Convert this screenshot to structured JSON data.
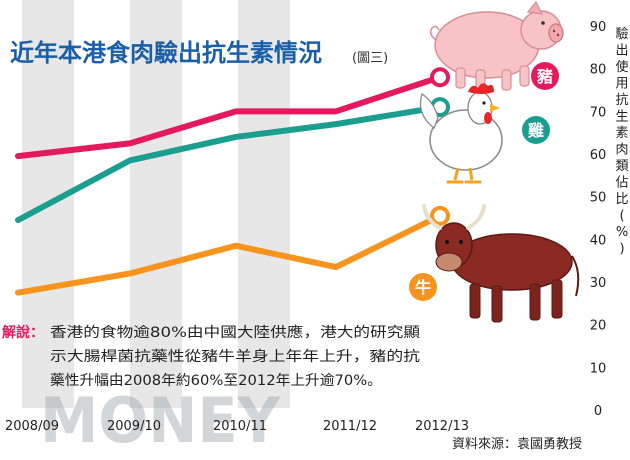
{
  "header": {
    "title": "近年本港食肉驗出抗生素情況",
    "figure_tag": "(圖三)"
  },
  "y_axis_title": [
    "驗",
    "出",
    "使",
    "用",
    "抗",
    "生",
    "素",
    "肉",
    "類",
    "佔",
    "比",
    "(",
    "%",
    ")"
  ],
  "note": {
    "label": "解說：",
    "lines": [
      "香港的食物逾80%由中國大陸供應，港大的研究顯",
      "示大腸桿菌抗藥性從豬牛羊身上年年上升，豬的抗",
      "藥性升幅由2008年約60%至2012年上升逾70%。"
    ]
  },
  "source": "資料來源：袁國勇教授",
  "watermark": "MONEY",
  "colors": {
    "pork": "#e5195e",
    "chicken": "#1a9e8f",
    "beef": "#f7941d",
    "band": "#e7e7e7",
    "title": "#1a5fa8",
    "note_label": "#e5195e",
    "text": "#222222"
  },
  "icons": [
    "pig-illustration",
    "chicken-illustration",
    "cow-illustration"
  ],
  "chart_data": {
    "type": "line",
    "categories": [
      "2008/09",
      "2009/10",
      "2010/11",
      "2011/12",
      "2012/13"
    ],
    "ylim": [
      0,
      90
    ],
    "yticks": [
      0,
      10,
      20,
      30,
      40,
      50,
      60,
      70,
      80,
      90
    ],
    "series": [
      {
        "name": "豬",
        "color": "#e5195e",
        "values": [
          59.5,
          62.5,
          70,
          70,
          78
        ]
      },
      {
        "name": "雞",
        "color": "#1a9e8f",
        "values": [
          44.5,
          58.5,
          64,
          67,
          71
        ]
      },
      {
        "name": "牛",
        "color": "#f7941d",
        "values": [
          27.5,
          32,
          38.5,
          33.5,
          45.5
        ]
      }
    ]
  }
}
